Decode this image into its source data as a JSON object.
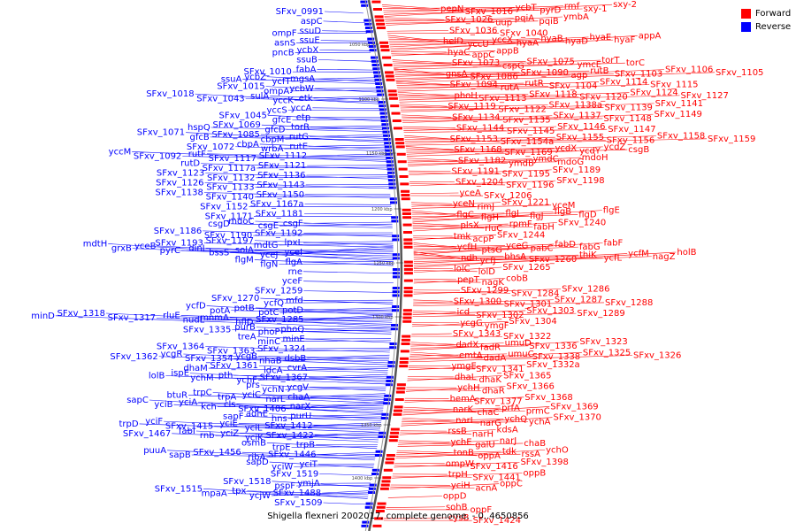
{
  "legend": {
    "forward_label": "Forward",
    "reverse_label": "Reverse",
    "forward_color": "#ff0000",
    "reverse_color": "#0000ff"
  },
  "caption": "Shigella flexneri 2002017, complete genome. - 0..4650856",
  "axis_ticks": [
    "1050 kbp",
    "1100 kbp",
    "1150 kbp",
    "1200 kbp",
    "1250 kbp",
    "1300 kbp",
    "1350 kbp",
    "1400 kbp"
  ],
  "reverse_labels": [
    [
      "SFxv_0991"
    ],
    [
      "aspC"
    ],
    [
      "ompF",
      "ssuD"
    ],
    [
      "asnS",
      "ssuE"
    ],
    [
      "pncB",
      "ycbX"
    ],
    [
      "ssuB"
    ],
    [
      "SFxv_1010",
      "fabA"
    ],
    [
      "ssuA",
      "ycbZ",
      "ycfT",
      "mgsA"
    ],
    [
      "SFxv_1015",
      "ompA",
      "ycbW"
    ],
    [
      "SFxv_1018",
      "SFxv_1043",
      "sulA",
      "yccK",
      "etk"
    ],
    [
      "yccS",
      "yccA"
    ],
    [
      "SFxv_1045",
      "gfcE",
      "etp"
    ],
    [
      "hspQ",
      "SFxv_1069",
      "gfcD",
      "torR"
    ],
    [
      "SFxv_1071",
      "gfcB",
      "SFxv_1085",
      "cbpM",
      "rutG"
    ],
    [
      "SFxv_1072",
      "cbpA",
      "wrbA",
      "rutE"
    ],
    [
      "yccM",
      "SFxv_1092",
      "rutF",
      "SFxv_1117",
      "SFxv_1112"
    ],
    [
      "rutD",
      "SFxv_1117a",
      "SFxv_1121"
    ],
    [
      "SFxv_1123",
      "SFxv_1132",
      "SFxv_1136"
    ],
    [
      "SFxv_1126",
      "SFxv_1133",
      "SFxv_1143"
    ],
    [
      "SFxv_1138",
      "SFxv_1140",
      "SFxv_1150"
    ],
    [
      "SFxv_1152",
      "SFxv_1167a"
    ],
    [
      "SFxv_1171",
      "SFxv_1181"
    ],
    [
      "csgD",
      "mdoC",
      "csgE",
      "csgF"
    ],
    [
      "SFxv_1186",
      "SFxv_1190",
      "SFxv_1192"
    ],
    [
      "SFxv_1193",
      "SFxv_1197",
      "mdtG",
      "lpxL"
    ],
    [
      "mdtH",
      "grxB",
      "yceB",
      "pyrC",
      "dinI",
      "bssS",
      "solA",
      "yceJ",
      "yceI"
    ],
    [
      "flgM",
      "flgN",
      "flgA"
    ],
    [
      "rne"
    ],
    [
      "yceF"
    ],
    [
      "SFxv_1259"
    ],
    [
      "SFxv_1270",
      "ycfQ",
      "mfd"
    ],
    [
      "ycfD",
      "potA",
      "potB",
      "potC",
      "potD"
    ],
    [
      "minD",
      "SFxv_1318",
      "SFxv_1317",
      "rluE",
      "nudL",
      "mnmA",
      "hflD",
      "SFxv_1285"
    ],
    [
      "SFxv_1335",
      "purB",
      "phoP",
      "phoQ"
    ],
    [
      "treA",
      "minC",
      "minE"
    ],
    [
      "SFxv_1364",
      "SFxv_1363",
      "SFxv_1324"
    ],
    [
      "SFxv_1362",
      "ycgR",
      "SFxv_1354",
      "ycgB",
      "nhaB",
      "dsbB"
    ],
    [
      "dhaM",
      "SFxv_1361",
      "ldcA",
      "cvrA"
    ],
    [
      "lolB",
      "ispE",
      "ychM",
      "pth",
      "ychF",
      "SFxv_1367"
    ],
    [
      "prs",
      "ychN",
      "ycgV"
    ],
    [
      "btuR",
      "trpC",
      "trpA",
      "yciC",
      "narL",
      "chaA"
    ],
    [
      "sapC",
      "yciB",
      "yciA",
      "kch",
      "cls",
      "SFxv_1406",
      "narX"
    ],
    [
      "sapF",
      "adhE",
      "hns",
      "purU"
    ],
    [
      "trpD",
      "yciF",
      "SFxv_1415",
      "yciE",
      "yciL",
      "SFxv_1412"
    ],
    [
      "SFxv_1467",
      "fabI",
      "rnb",
      "yciZ",
      "yciK",
      "SFxv_1422"
    ],
    [
      "osmB",
      "trpE",
      "trpB"
    ],
    [
      "puuA",
      "sapB",
      "SFxv_1456",
      "ribA",
      "SFxv_1446"
    ],
    [
      "sapD",
      "yciW",
      "yciT"
    ],
    [
      "SFxv_1519"
    ],
    [
      "SFxv_1518",
      "pspF",
      "ymjA"
    ],
    [
      "SFxv_1515",
      "mpaA",
      "tpx",
      "ycjW",
      "SFxv_1488"
    ],
    [
      "SFxv_1509"
    ]
  ],
  "forward_labels": [
    [
      "pepN",
      "SFxv_1016",
      "ycbT",
      "pyrD",
      "rmf",
      "sxy-1",
      "sxy-2"
    ],
    [
      "SFxv_1026",
      "uup",
      "pqiA",
      "pqiB",
      "ymbA"
    ],
    [
      "SFxv_1036",
      "SFxv_1040"
    ],
    [
      "helD",
      "yccU",
      "yccX",
      "hyaA",
      "hyaB",
      "hyaD",
      "hyaE",
      "hyaF",
      "appA"
    ],
    [
      "hyaC",
      "appC",
      "appB"
    ],
    [
      "SFxv_1073",
      "cspG",
      "SFxv_1075",
      "ymcE",
      "torT",
      "torC"
    ],
    [
      "gnsA",
      "SFxv_1086",
      "SFxv_1090",
      "agp",
      "rutB",
      "SFxv_1103",
      "SFxv_1106",
      "SFxv_1105"
    ],
    [
      "SFxv_1094",
      "rutA",
      "rutR",
      "SFxv_1104",
      "SFxv_1114",
      "SFxv_1115"
    ],
    [
      "phoH",
      "SFxv_1113",
      "SFxv_1118",
      "SFxv_1120",
      "SFxv_1124",
      "SFxv_1127"
    ],
    [
      "SFxv_1119",
      "SFxv_1122",
      "SFxv_1138a",
      "SFxv_1139",
      "SFxv_1141"
    ],
    [
      "SFxv_1134",
      "SFxv_1135",
      "SFxv_1137",
      "SFxv_1148",
      "SFxv_1149"
    ],
    [
      "SFxv_1144",
      "SFxv_1145",
      "SFxv_1146",
      "SFxv_1147"
    ],
    [
      "SFxv_1153",
      "SFxv_1154a",
      "SFxv_1155",
      "SFxv_1156",
      "SFxv_1158",
      "SFxv_1159"
    ],
    [
      "SFxv_1168",
      "SFxv_1169",
      "ycdX",
      "ycdY",
      "ycdZ",
      "csgB"
    ],
    [
      "SFxv_1182",
      "ymdB",
      "ymdC",
      "mdoG",
      "mdoH"
    ],
    [
      "SFxv_1191",
      "SFxv_1195",
      "SFxv_1189"
    ],
    [
      "SFxv_1204",
      "SFxv_1196",
      "SFxv_1198"
    ],
    [
      "yceA",
      "SFxv_1206"
    ],
    [
      "yceN",
      "rimJ",
      "SFxv_1221",
      "yceM"
    ],
    [
      "flgC",
      "flgH",
      "flgI",
      "flgJ",
      "flgB",
      "flgD",
      "flgE"
    ],
    [
      "plsX",
      "rluC",
      "rpmF",
      "fabH",
      "SFxv_1240"
    ],
    [
      "tmk",
      "acpP",
      "SFxv_1244"
    ],
    [
      "ycfH",
      "ptsG",
      "yceG",
      "pabC",
      "fabD",
      "fabG",
      "fabF"
    ],
    [
      "ndh",
      "ycfJ",
      "bhsA",
      "SFxv_1260",
      "thiK",
      "ycfL",
      "ycfM",
      "nagZ",
      "holB"
    ],
    [
      "lolC",
      "lolD",
      "SFxv_1265"
    ],
    [
      "pepT",
      "nagK",
      "cobB"
    ],
    [
      "SFxv_1299",
      "SFxv_1284",
      "SFxv_1286"
    ],
    [
      "SFxv_1300",
      "SFxv_1301",
      "SFxv_1287",
      "SFxv_1288"
    ],
    [
      "icd",
      "SFxv_1302",
      "SFxv_1303",
      "SFxv_1289"
    ],
    [
      "ycgG",
      "ymgF",
      "SFxv_1304"
    ],
    [
      "SFxv_1343",
      "SFxv_1322"
    ],
    [
      "dadX",
      "fadR",
      "umuD",
      "SFxv_1336",
      "SFxv_1323"
    ],
    [
      "emtA",
      "dadA",
      "umuC",
      "SFxv_1338",
      "SFxv_1325",
      "SFxv_1326"
    ],
    [
      "ymgE",
      "SFxv_1341",
      "SFxv_1332a"
    ],
    [
      "dhaL",
      "dhaK",
      "SFxv_1365"
    ],
    [
      "ychH",
      "dhaR",
      "SFxv_1366"
    ],
    [
      "hemA",
      "SFxv_1377",
      "SFxv_1368"
    ],
    [
      "narK",
      "chaC",
      "prfA",
      "prmC",
      "SFxv_1369"
    ],
    [
      "narI",
      "narG",
      "ychQ",
      "ychA",
      "SFxv_1370"
    ],
    [
      "rssB",
      "narH",
      "kdsA"
    ],
    [
      "ychE",
      "galU",
      "narJ",
      "chaB"
    ],
    [
      "tonB",
      "oppA",
      "tdk",
      "rssA",
      "ychO"
    ],
    [
      "ompW",
      "SFxv_1416",
      "SFxv_1398"
    ],
    [
      "trpH",
      "SFxv_1441",
      "oppB"
    ],
    [
      "yciH",
      "acnA",
      "oppC"
    ],
    [
      "oppD"
    ],
    [
      "sohB",
      "oppF"
    ],
    [
      "cysB",
      "SFxv_1424"
    ]
  ]
}
